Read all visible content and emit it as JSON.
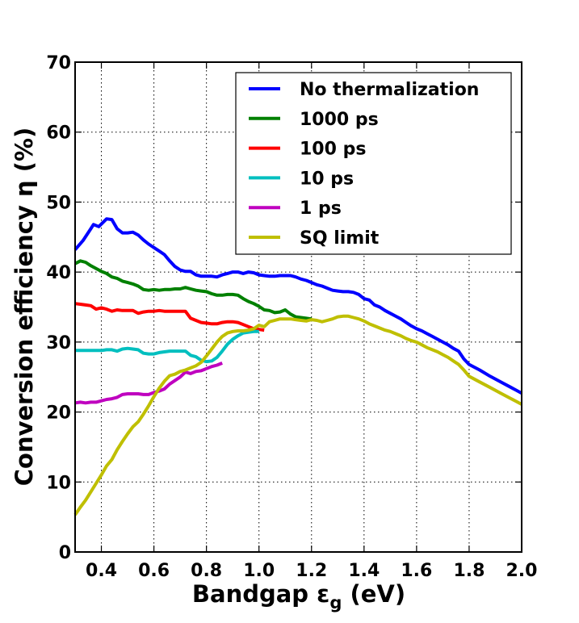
{
  "chart_data": {
    "type": "line",
    "xlabel_main": "Bandgap ε",
    "xlabel_sub": "g",
    "xlabel_unit": "(eV)",
    "ylabel": "Conversion efficiency η (%)",
    "xlim": [
      0.3,
      2.0
    ],
    "ylim": [
      0,
      70
    ],
    "xticks": [
      "0.4",
      "0.6",
      "0.8",
      "1.0",
      "1.2",
      "1.4",
      "1.6",
      "1.8",
      "2.0"
    ],
    "yticks": [
      "0",
      "10",
      "20",
      "30",
      "40",
      "50",
      "60",
      "70"
    ],
    "grid": true,
    "legend_position": "upper-right",
    "series": [
      {
        "name": "No thermalization",
        "color": "#0000ff",
        "x": [
          0.3,
          0.33,
          0.36,
          0.37,
          0.39,
          0.42,
          0.44,
          0.46,
          0.48,
          0.5,
          0.52,
          0.54,
          0.56,
          0.58,
          0.6,
          0.62,
          0.64,
          0.66,
          0.68,
          0.7,
          0.72,
          0.74,
          0.76,
          0.78,
          0.8,
          0.82,
          0.84,
          0.86,
          0.88,
          0.9,
          0.92,
          0.94,
          0.96,
          0.98,
          1.0,
          1.02,
          1.04,
          1.06,
          1.08,
          1.1,
          1.12,
          1.14,
          1.16,
          1.18,
          1.2,
          1.22,
          1.24,
          1.26,
          1.28,
          1.3,
          1.32,
          1.34,
          1.36,
          1.38,
          1.4,
          1.42,
          1.44,
          1.46,
          1.48,
          1.5,
          1.52,
          1.54,
          1.56,
          1.58,
          1.6,
          1.62,
          1.64,
          1.66,
          1.68,
          1.7,
          1.72,
          1.74,
          1.76,
          1.78,
          1.8,
          1.84,
          1.88,
          1.92,
          1.96,
          2.0
        ],
        "y": [
          43.2,
          44.5,
          46.2,
          46.8,
          46.5,
          47.6,
          47.5,
          46.2,
          45.6,
          45.6,
          45.7,
          45.3,
          44.6,
          44.0,
          43.5,
          43.0,
          42.5,
          41.6,
          40.8,
          40.3,
          40.1,
          40.1,
          39.6,
          39.4,
          39.4,
          39.4,
          39.3,
          39.6,
          39.8,
          40.0,
          40.0,
          39.8,
          40.0,
          39.9,
          39.6,
          39.5,
          39.4,
          39.4,
          39.5,
          39.5,
          39.5,
          39.3,
          39.0,
          38.8,
          38.5,
          38.2,
          38.0,
          37.7,
          37.4,
          37.3,
          37.2,
          37.2,
          37.1,
          36.8,
          36.2,
          36.0,
          35.3,
          35.0,
          34.5,
          34.1,
          33.7,
          33.3,
          32.8,
          32.3,
          31.9,
          31.6,
          31.2,
          30.8,
          30.4,
          30.0,
          29.6,
          29.1,
          28.7,
          27.6,
          26.8,
          26.0,
          25.1,
          24.3,
          23.5,
          22.7
        ]
      },
      {
        "name": "1000 ps",
        "color": "#008000",
        "x": [
          0.3,
          0.32,
          0.34,
          0.36,
          0.38,
          0.4,
          0.42,
          0.44,
          0.46,
          0.48,
          0.5,
          0.52,
          0.54,
          0.56,
          0.58,
          0.6,
          0.62,
          0.64,
          0.66,
          0.68,
          0.7,
          0.72,
          0.74,
          0.76,
          0.78,
          0.8,
          0.82,
          0.84,
          0.86,
          0.88,
          0.9,
          0.92,
          0.94,
          0.96,
          0.98,
          1.0,
          1.02,
          1.04,
          1.06,
          1.08,
          1.1,
          1.12,
          1.14,
          1.16,
          1.18,
          1.2
        ],
        "y": [
          41.2,
          41.6,
          41.4,
          40.9,
          40.5,
          40.1,
          39.8,
          39.3,
          39.1,
          38.7,
          38.5,
          38.3,
          38.0,
          37.5,
          37.4,
          37.5,
          37.4,
          37.5,
          37.5,
          37.6,
          37.6,
          37.8,
          37.6,
          37.4,
          37.3,
          37.2,
          36.9,
          36.7,
          36.7,
          36.8,
          36.8,
          36.7,
          36.2,
          35.8,
          35.5,
          35.1,
          34.6,
          34.5,
          34.2,
          34.3,
          34.6,
          34.0,
          33.6,
          33.5,
          33.4,
          33.3
        ]
      },
      {
        "name": "100 ps",
        "color": "#ff0000",
        "x": [
          0.3,
          0.32,
          0.34,
          0.36,
          0.38,
          0.4,
          0.42,
          0.44,
          0.46,
          0.48,
          0.5,
          0.52,
          0.54,
          0.56,
          0.58,
          0.6,
          0.62,
          0.64,
          0.66,
          0.68,
          0.7,
          0.72,
          0.74,
          0.76,
          0.78,
          0.8,
          0.82,
          0.84,
          0.86,
          0.88,
          0.9,
          0.92,
          0.94,
          0.96,
          0.98,
          1.0,
          1.02
        ],
        "y": [
          35.5,
          35.4,
          35.3,
          35.2,
          34.7,
          34.9,
          34.7,
          34.4,
          34.6,
          34.5,
          34.5,
          34.5,
          34.1,
          34.3,
          34.4,
          34.4,
          34.5,
          34.4,
          34.4,
          34.4,
          34.4,
          34.4,
          33.4,
          33.1,
          32.8,
          32.7,
          32.6,
          32.6,
          32.8,
          32.9,
          32.9,
          32.8,
          32.5,
          32.2,
          31.9,
          31.8,
          31.7
        ]
      },
      {
        "name": "10 ps",
        "color": "#00bfbf",
        "x": [
          0.3,
          0.32,
          0.34,
          0.36,
          0.38,
          0.4,
          0.42,
          0.44,
          0.46,
          0.48,
          0.5,
          0.52,
          0.54,
          0.56,
          0.58,
          0.6,
          0.62,
          0.64,
          0.66,
          0.68,
          0.7,
          0.72,
          0.74,
          0.76,
          0.78,
          0.8,
          0.82,
          0.84,
          0.86,
          0.88,
          0.9,
          0.92,
          0.94,
          0.96,
          0.98,
          1.0
        ],
        "y": [
          28.8,
          28.8,
          28.8,
          28.8,
          28.8,
          28.8,
          28.9,
          28.9,
          28.7,
          29.0,
          29.1,
          29.0,
          28.9,
          28.4,
          28.3,
          28.3,
          28.5,
          28.6,
          28.7,
          28.7,
          28.7,
          28.7,
          28.1,
          27.9,
          27.4,
          27.2,
          27.3,
          27.8,
          28.7,
          29.7,
          30.4,
          30.9,
          31.3,
          31.4,
          31.5,
          31.5
        ]
      },
      {
        "name": "1 ps",
        "color": "#bf00bf",
        "x": [
          0.3,
          0.32,
          0.34,
          0.36,
          0.38,
          0.4,
          0.42,
          0.44,
          0.46,
          0.48,
          0.5,
          0.52,
          0.54,
          0.56,
          0.58,
          0.6,
          0.62,
          0.64,
          0.66,
          0.68,
          0.7,
          0.72,
          0.74,
          0.76,
          0.78,
          0.8,
          0.82,
          0.84,
          0.86
        ],
        "y": [
          21.3,
          21.4,
          21.3,
          21.4,
          21.4,
          21.6,
          21.8,
          21.9,
          22.1,
          22.5,
          22.6,
          22.6,
          22.6,
          22.5,
          22.5,
          22.8,
          23.0,
          23.3,
          24.0,
          24.5,
          25.0,
          25.7,
          25.5,
          25.8,
          25.9,
          26.2,
          26.5,
          26.7,
          27.0
        ]
      },
      {
        "name": "SQ limit",
        "color": "#bfbf00",
        "x": [
          0.3,
          0.32,
          0.34,
          0.36,
          0.38,
          0.4,
          0.42,
          0.44,
          0.46,
          0.48,
          0.5,
          0.52,
          0.54,
          0.56,
          0.58,
          0.6,
          0.62,
          0.64,
          0.66,
          0.68,
          0.7,
          0.72,
          0.74,
          0.76,
          0.78,
          0.8,
          0.82,
          0.84,
          0.86,
          0.88,
          0.9,
          0.92,
          0.94,
          0.96,
          0.98,
          1.0,
          1.02,
          1.04,
          1.06,
          1.08,
          1.1,
          1.12,
          1.14,
          1.16,
          1.18,
          1.2,
          1.22,
          1.24,
          1.26,
          1.28,
          1.3,
          1.32,
          1.34,
          1.36,
          1.38,
          1.4,
          1.42,
          1.44,
          1.46,
          1.48,
          1.5,
          1.52,
          1.54,
          1.56,
          1.58,
          1.6,
          1.62,
          1.64,
          1.66,
          1.68,
          1.7,
          1.72,
          1.74,
          1.76,
          1.78,
          1.8,
          1.84,
          1.88,
          1.92,
          1.96,
          2.0
        ],
        "y": [
          5.3,
          6.4,
          7.4,
          8.6,
          9.8,
          11.0,
          12.3,
          13.2,
          14.6,
          15.8,
          16.9,
          17.9,
          18.6,
          19.7,
          20.9,
          22.2,
          23.4,
          24.4,
          25.2,
          25.4,
          25.8,
          26.0,
          26.3,
          26.6,
          27.1,
          28.0,
          29.0,
          30.0,
          30.8,
          31.3,
          31.5,
          31.6,
          31.6,
          31.7,
          31.9,
          32.4,
          32.2,
          32.9,
          33.1,
          33.3,
          33.3,
          33.3,
          33.2,
          33.1,
          33.0,
          33.2,
          33.1,
          32.9,
          33.1,
          33.3,
          33.6,
          33.7,
          33.7,
          33.5,
          33.3,
          33.0,
          32.6,
          32.3,
          32.0,
          31.7,
          31.5,
          31.2,
          30.9,
          30.5,
          30.2,
          30.0,
          29.6,
          29.2,
          28.9,
          28.6,
          28.2,
          27.8,
          27.3,
          26.8,
          26.0,
          25.1,
          24.3,
          23.5,
          22.7,
          21.9,
          21.1
        ]
      }
    ]
  }
}
